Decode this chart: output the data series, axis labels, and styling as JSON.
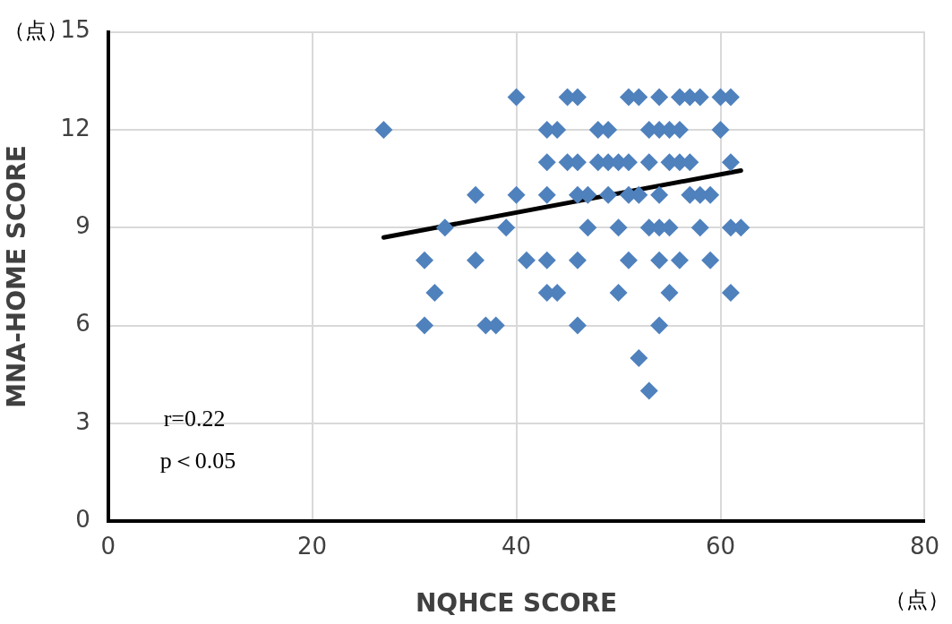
{
  "chart_data": {
    "type": "scatter",
    "xlabel": "NQHCE SCORE",
    "ylabel": "MNA-HOME SCORE",
    "xlim": [
      0,
      80
    ],
    "xticks": [
      0,
      20,
      40,
      60,
      80
    ],
    "ylim": [
      0,
      15
    ],
    "yticks": [
      0,
      3,
      6,
      9,
      12,
      15
    ],
    "grid": true,
    "legend": false,
    "marker": "diamond",
    "annotations": [
      "r=0.22",
      "p＜0.05",
      "（点）",
      "（点）"
    ],
    "series": [
      {
        "color": "#4f81bd",
        "x": [
          40,
          45,
          46,
          51,
          52,
          54,
          56,
          57,
          58,
          60,
          61,
          27,
          43,
          44,
          48,
          49,
          53,
          54,
          55,
          56,
          60,
          43,
          45,
          46,
          48,
          49,
          50,
          51,
          53,
          55,
          56,
          57,
          61,
          36,
          40,
          43,
          46,
          47,
          49,
          51,
          52,
          54,
          57,
          58,
          59,
          33,
          39,
          47,
          50,
          53,
          54,
          55,
          58,
          61,
          62,
          31,
          36,
          41,
          43,
          46,
          51,
          54,
          56,
          59,
          32,
          43,
          44,
          50,
          55,
          61,
          31,
          37,
          38,
          46,
          54,
          52,
          53
        ],
        "values": [
          13,
          13,
          13,
          13,
          13,
          13,
          13,
          13,
          13,
          13,
          13,
          12,
          12,
          12,
          12,
          12,
          12,
          12,
          12,
          12,
          12,
          11,
          11,
          11,
          11,
          11,
          11,
          11,
          11,
          11,
          11,
          11,
          11,
          10,
          10,
          10,
          10,
          10,
          10,
          10,
          10,
          10,
          10,
          10,
          10,
          9,
          9,
          9,
          9,
          9,
          9,
          9,
          9,
          9,
          9,
          8,
          8,
          8,
          8,
          8,
          8,
          8,
          8,
          8,
          7,
          7,
          7,
          7,
          7,
          7,
          6,
          6,
          6,
          6,
          6,
          5,
          4
        ]
      },
      {
        "type": "line",
        "color": "#000000",
        "marker": "none",
        "x": [
          27,
          62
        ],
        "values": [
          8.7,
          10.75
        ]
      }
    ]
  }
}
